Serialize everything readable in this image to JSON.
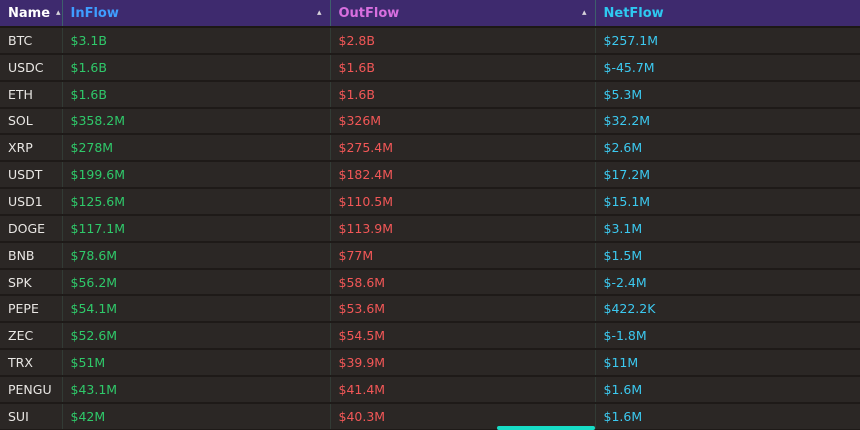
{
  "icons": {
    "sort_asc": "▴"
  },
  "colors": {
    "header_bg": "#3e2a6e",
    "row_bg": "#2b2725",
    "name_text": "#e9e7e4",
    "inflow_text": "#2fc96a",
    "outflow_text": "#f25757",
    "netflow_text": "#3cc9f0",
    "header_inflow": "#3f9dff",
    "header_outflow": "#d86fdf",
    "header_netflow": "#2ec8f0",
    "scrollbar_thumb": "#17dcc6"
  },
  "table": {
    "columns": [
      {
        "label": "Name",
        "sorted": true
      },
      {
        "label": "InFlow",
        "sorted": true
      },
      {
        "label": "OutFlow",
        "sorted": true
      },
      {
        "label": "NetFlow",
        "sorted": false
      }
    ],
    "rows": [
      {
        "name": "BTC",
        "inflow": "$3.1B",
        "outflow": "$2.8B",
        "netflow": "$257.1M"
      },
      {
        "name": "USDC",
        "inflow": "$1.6B",
        "outflow": "$1.6B",
        "netflow": "$-45.7M"
      },
      {
        "name": "ETH",
        "inflow": "$1.6B",
        "outflow": "$1.6B",
        "netflow": "$5.3M"
      },
      {
        "name": "SOL",
        "inflow": "$358.2M",
        "outflow": "$326M",
        "netflow": "$32.2M"
      },
      {
        "name": "XRP",
        "inflow": "$278M",
        "outflow": "$275.4M",
        "netflow": "$2.6M"
      },
      {
        "name": "USDT",
        "inflow": "$199.6M",
        "outflow": "$182.4M",
        "netflow": "$17.2M"
      },
      {
        "name": "USD1",
        "inflow": "$125.6M",
        "outflow": "$110.5M",
        "netflow": "$15.1M"
      },
      {
        "name": "DOGE",
        "inflow": "$117.1M",
        "outflow": "$113.9M",
        "netflow": "$3.1M"
      },
      {
        "name": "BNB",
        "inflow": "$78.6M",
        "outflow": "$77M",
        "netflow": "$1.5M"
      },
      {
        "name": "SPK",
        "inflow": "$56.2M",
        "outflow": "$58.6M",
        "netflow": "$-2.4M"
      },
      {
        "name": "PEPE",
        "inflow": "$54.1M",
        "outflow": "$53.6M",
        "netflow": "$422.2K"
      },
      {
        "name": "ZEC",
        "inflow": "$52.6M",
        "outflow": "$54.5M",
        "netflow": "$-1.8M"
      },
      {
        "name": "TRX",
        "inflow": "$51M",
        "outflow": "$39.9M",
        "netflow": "$11M"
      },
      {
        "name": "PENGU",
        "inflow": "$43.1M",
        "outflow": "$41.4M",
        "netflow": "$1.6M"
      },
      {
        "name": "SUI",
        "inflow": "$42M",
        "outflow": "$40.3M",
        "netflow": "$1.6M"
      }
    ]
  }
}
